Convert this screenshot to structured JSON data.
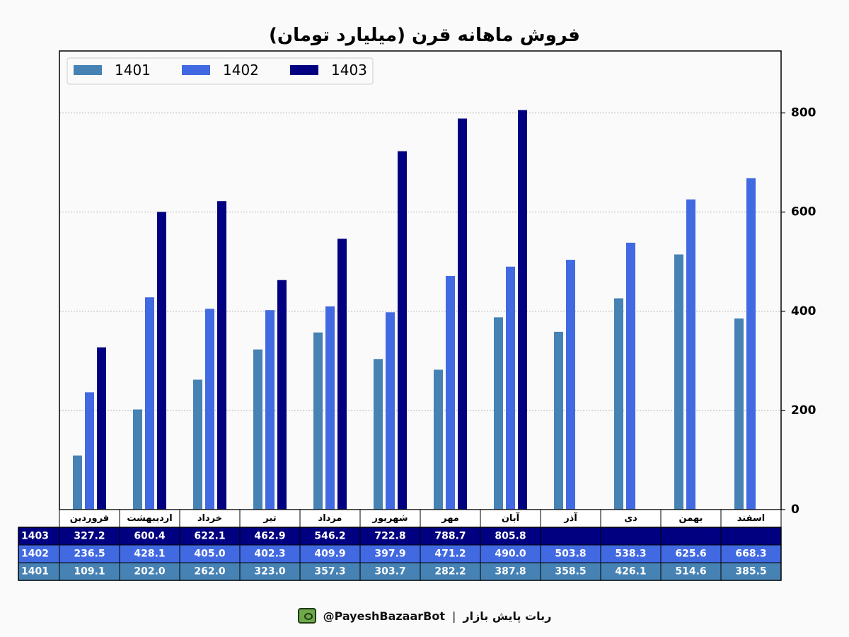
{
  "chart_data": {
    "type": "bar",
    "title": "فروش ماهانه قرن (میلیارد تومان)",
    "categories": [
      "فروردین",
      "اردیبهشت",
      "خرداد",
      "تیر",
      "مرداد",
      "شهریور",
      "مهر",
      "آبان",
      "آذر",
      "دی",
      "بهمن",
      "اسفند"
    ],
    "series": [
      {
        "name": "1401",
        "color": "#4682b4",
        "values": [
          109.1,
          202.0,
          262.0,
          323.0,
          357.3,
          303.7,
          282.2,
          387.8,
          358.5,
          426.1,
          514.6,
          385.5
        ]
      },
      {
        "name": "1402",
        "color": "#4169e1",
        "values": [
          236.5,
          428.1,
          405.0,
          402.3,
          409.9,
          397.9,
          471.2,
          490.0,
          503.8,
          538.3,
          625.6,
          668.3
        ]
      },
      {
        "name": "1403",
        "color": "#000080",
        "values": [
          327.2,
          600.4,
          622.1,
          462.9,
          546.2,
          722.8,
          788.7,
          805.8,
          null,
          null,
          null,
          null
        ]
      }
    ],
    "ylim": [
      0,
      925
    ],
    "yticks": [
      0,
      200,
      400,
      600,
      800
    ],
    "y_axis_side": "right",
    "grid": "horizontal dotted",
    "legend": "top-left",
    "table": {
      "rows": [
        {
          "label": "1403",
          "values": [
            "327.2",
            "600.4",
            "622.1",
            "462.9",
            "546.2",
            "722.8",
            "788.7",
            "805.8",
            "",
            "",
            "",
            ""
          ]
        },
        {
          "label": "1402",
          "values": [
            "236.5",
            "428.1",
            "405.0",
            "402.3",
            "409.9",
            "397.9",
            "471.2",
            "490.0",
            "503.8",
            "538.3",
            "625.6",
            "668.3"
          ]
        },
        {
          "label": "1401",
          "values": [
            "109.1",
            "202.0",
            "262.0",
            "323.0",
            "357.3",
            "303.7",
            "282.2",
            "387.8",
            "358.5",
            "426.1",
            "514.6",
            "385.5"
          ]
        }
      ]
    }
  },
  "footer": {
    "bot_name": "ربات پایش بازار",
    "separator": "|",
    "handle": "@PayeshBazaarBot",
    "icon": "robot-icon"
  }
}
